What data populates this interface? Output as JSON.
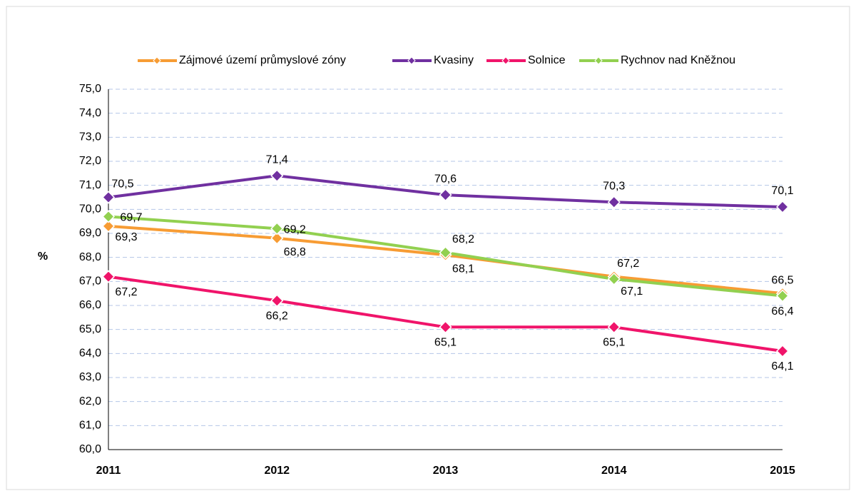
{
  "chart_data": {
    "type": "line",
    "ylabel": "%",
    "categories": [
      "2011",
      "2012",
      "2013",
      "2014",
      "2015"
    ],
    "series": [
      {
        "name": "Zájmové území průmyslové zóny",
        "color": "#f79c34",
        "values": [
          69.3,
          68.8,
          68.1,
          67.2,
          66.5
        ],
        "value_labels": [
          "69,3",
          "68,8",
          "68,1",
          "67,2",
          "66,5"
        ]
      },
      {
        "name": "Kvasiny",
        "color": "#7030a0",
        "values": [
          70.5,
          71.4,
          70.6,
          70.3,
          70.1
        ],
        "value_labels": [
          "70,5",
          "71,4",
          "70,6",
          "70,3",
          "70,1"
        ]
      },
      {
        "name": "Solnice",
        "color": "#f0146a",
        "values": [
          67.2,
          66.2,
          65.1,
          65.1,
          64.1
        ],
        "value_labels": [
          "67,2",
          "66,2",
          "65,1",
          "65,1",
          "64,1"
        ]
      },
      {
        "name": "Rychnov nad Kněžnou",
        "color": "#92d050",
        "values": [
          69.7,
          69.2,
          68.2,
          67.1,
          66.4
        ],
        "value_labels": [
          "69,7",
          "69,2",
          "68,2",
          "67,1",
          "66,4"
        ]
      }
    ],
    "ylim": [
      60,
      75
    ],
    "yticks": [
      {
        "value": 60,
        "label": "60,0"
      },
      {
        "value": 61,
        "label": "61,0"
      },
      {
        "value": 62,
        "label": "62,0"
      },
      {
        "value": 63,
        "label": "63,0"
      },
      {
        "value": 64,
        "label": "64,0"
      },
      {
        "value": 65,
        "label": "65,0"
      },
      {
        "value": 66,
        "label": "66,0"
      },
      {
        "value": 67,
        "label": "67,0"
      },
      {
        "value": 68,
        "label": "68,0"
      },
      {
        "value": 69,
        "label": "69,0"
      },
      {
        "value": 70,
        "label": "70,0"
      },
      {
        "value": 71,
        "label": "71,0"
      },
      {
        "value": 72,
        "label": "72,0"
      },
      {
        "value": 73,
        "label": "73,0"
      },
      {
        "value": 74,
        "label": "74,0"
      },
      {
        "value": 75,
        "label": "75,0"
      }
    ],
    "grid": true,
    "legend": "top"
  }
}
